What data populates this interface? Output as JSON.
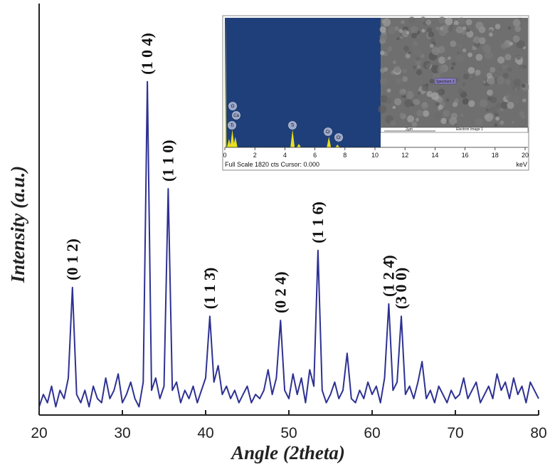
{
  "chart_data": [
    {
      "type": "line",
      "xlabel": "Angle (2theta)",
      "ylabel": "Intensity (a.u.)",
      "color": "#2e3192",
      "x": [
        20,
        20.5,
        21,
        21.5,
        22,
        22.5,
        23,
        23.5,
        24,
        24.5,
        25,
        25.5,
        26,
        26.5,
        27,
        27.5,
        28,
        28.5,
        29,
        29.5,
        30,
        30.5,
        31,
        31.5,
        32,
        32.5,
        33,
        33.5,
        34,
        34.5,
        35,
        35.5,
        36,
        36.5,
        37,
        37.5,
        38,
        38.5,
        39,
        39.5,
        40,
        40.5,
        41,
        41.5,
        42,
        42.5,
        43,
        43.5,
        44,
        44.5,
        45,
        45.5,
        46,
        46.5,
        47,
        47.5,
        48,
        48.5,
        49,
        49.5,
        50,
        50.5,
        51,
        51.5,
        52,
        52.5,
        53,
        53.5,
        54,
        54.5,
        55,
        55.5,
        56,
        56.5,
        57,
        57.5,
        58,
        58.5,
        59,
        59.5,
        60,
        60.5,
        61,
        61.5,
        62,
        62.5,
        63,
        63.5,
        64,
        64.5,
        65,
        65.5,
        66,
        66.5,
        67,
        67.5,
        68,
        68.5,
        69,
        69.5,
        70,
        70.5,
        71,
        71.5,
        72,
        72.5,
        73,
        73.5,
        74,
        74.5,
        75,
        75.5,
        76,
        76.5,
        77,
        77.5,
        78,
        78.5,
        79,
        79.5,
        80
      ],
      "values": [
        2,
        5,
        3,
        7,
        2,
        6,
        4,
        9,
        31,
        5,
        3,
        6,
        2,
        7,
        4,
        3,
        9,
        4,
        6,
        10,
        3,
        5,
        8,
        4,
        2,
        8,
        81,
        6,
        9,
        4,
        7,
        55,
        6,
        8,
        3,
        6,
        4,
        7,
        3,
        6,
        9,
        24,
        8,
        12,
        5,
        7,
        4,
        6,
        3,
        5,
        7,
        3,
        5,
        4,
        6,
        11,
        5,
        9,
        23,
        6,
        4,
        10,
        5,
        9,
        3,
        11,
        7,
        40,
        6,
        3,
        5,
        8,
        4,
        6,
        15,
        4,
        3,
        6,
        4,
        8,
        5,
        7,
        3,
        9,
        27,
        6,
        8,
        24,
        5,
        7,
        4,
        8,
        13,
        4,
        6,
        3,
        7,
        5,
        3,
        6,
        4,
        5,
        9,
        4,
        6,
        8,
        3,
        5,
        7,
        4,
        10,
        6,
        8,
        4,
        9,
        5,
        7,
        3,
        8,
        6,
        4
      ],
      "annotations": [
        "(0 1 2)",
        "(1 0 4)",
        "(1 1 0)",
        "(1 1 3̄)",
        "(0 2 4)",
        "(1 1 6̄)",
        "(1 2 4̄)",
        "(3 0 0)"
      ],
      "xlim": [
        20,
        80
      ],
      "xticks": [
        20,
        30,
        40,
        50,
        60,
        70,
        80
      ],
      "ylim": [
        0,
        100
      ]
    },
    {
      "type": "spectrum",
      "color": "#e8e020",
      "background": "#1f3f7a",
      "x": [
        0.05,
        0.28,
        0.5,
        0.7,
        4.51,
        4.93,
        6.93,
        7.5
      ],
      "values": [
        1820,
        120,
        250,
        150,
        250,
        50,
        150,
        40
      ],
      "peak_labels": [
        "O",
        "Ca",
        "Ti",
        "Ti",
        "Cr",
        "Cr"
      ],
      "xlabel": "keV",
      "footer": "Full Scale 1820 cts Cursor: 0.000",
      "xlim": [
        0,
        20
      ],
      "xticks": [
        0,
        2,
        4,
        6,
        8,
        10,
        12,
        14,
        16,
        18,
        20
      ],
      "ylim": [
        0,
        1820
      ]
    }
  ],
  "inset_image": {
    "spectrum_label": "Spectrum 3",
    "scale_bar": "2µm",
    "caption": "Electron Image 1"
  }
}
